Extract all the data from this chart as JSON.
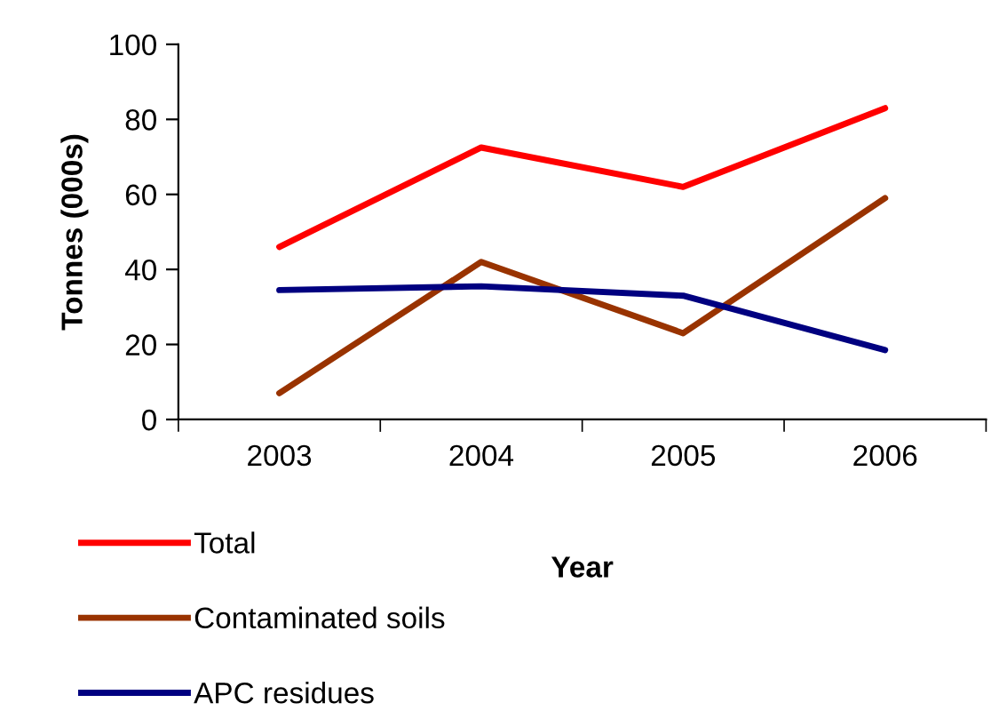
{
  "chart_data": {
    "type": "line",
    "xlabel": "Year",
    "ylabel": "Tonnes (000s)",
    "categories": [
      "2003",
      "2004",
      "2005",
      "2006"
    ],
    "series": [
      {
        "name": "Total",
        "color": "#ff0000",
        "values": [
          46,
          72.5,
          62,
          83
        ]
      },
      {
        "name": "Contaminated soils",
        "color": "#993300",
        "values": [
          7,
          42,
          23,
          59
        ]
      },
      {
        "name": "APC residues",
        "color": "#000080",
        "values": [
          34.5,
          35.5,
          33,
          18.5
        ]
      }
    ],
    "ylim": [
      0,
      100
    ],
    "yticks": [
      0,
      20,
      40,
      60,
      80,
      100
    ],
    "grid": false,
    "legend": "bottom left",
    "marker": "none",
    "line_style": "solid"
  }
}
